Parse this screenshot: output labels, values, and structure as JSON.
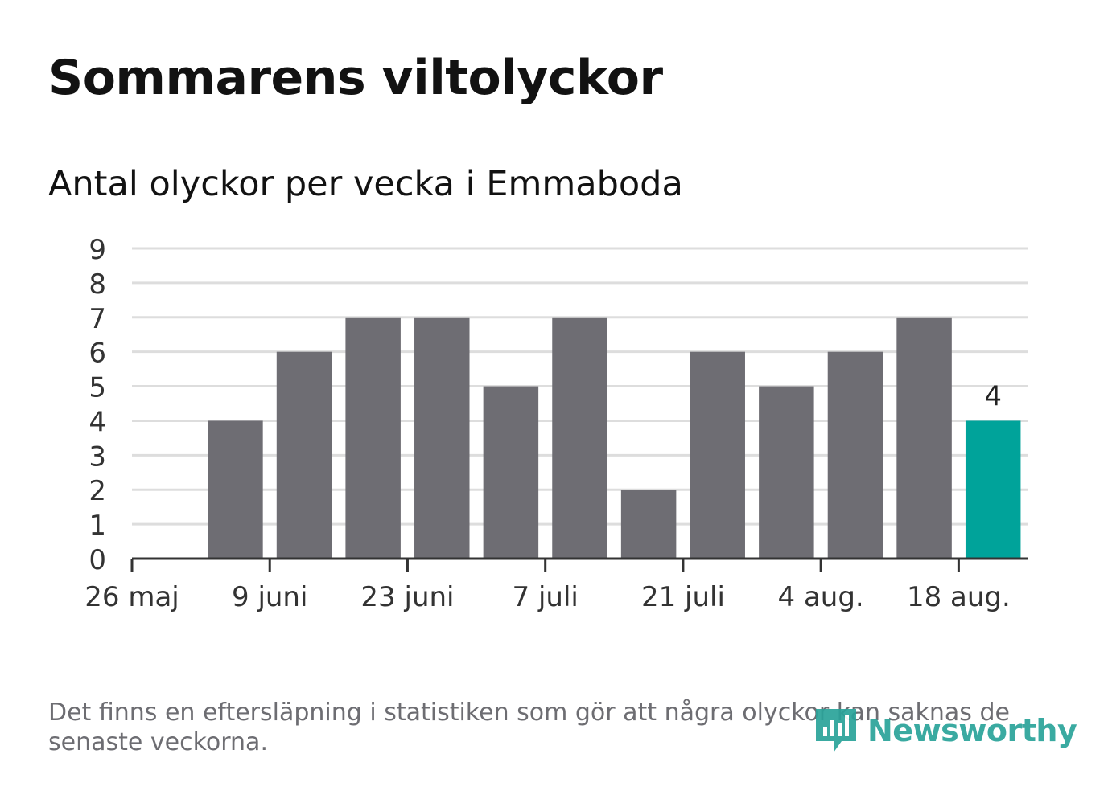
{
  "title": "Sommarens viltolyckor",
  "subtitle": "Antal olyckor per vecka i Emmaboda",
  "footnote": "Det finns en eftersläpning i statistiken som gör att några olyckor kan saknas de senaste veckorna.",
  "brand": {
    "name": "Newsworthy",
    "icon": "newsworthy-logo-icon",
    "color": "#2aa39a"
  },
  "colors": {
    "bar": "#6e6d73",
    "highlight": "#00a39a",
    "grid": "#dddddd",
    "axis": "#333333",
    "text": "#333333"
  },
  "chart_data": {
    "type": "bar",
    "x": [
      "2025-05-26",
      "2025-06-02",
      "2025-06-09",
      "2025-06-16",
      "2025-06-23",
      "2025-06-30",
      "2025-07-07",
      "2025-07-14",
      "2025-07-21",
      "2025-07-28",
      "2025-08-04",
      "2025-08-11",
      "2025-08-18"
    ],
    "values": [
      null,
      4,
      6,
      7,
      7,
      5,
      7,
      2,
      6,
      5,
      6,
      7,
      4
    ],
    "highlight_index": 12,
    "highlight_label": "4",
    "x_ticks": [
      "26 maj",
      "9 juni",
      "23 juni",
      "7 juli",
      "21 juli",
      "4 aug.",
      "18 aug."
    ],
    "x_tick_every": 2,
    "y_ticks": [
      0,
      1,
      2,
      3,
      4,
      5,
      6,
      7,
      8,
      9
    ],
    "ylim": [
      0,
      9
    ],
    "grid": true,
    "xlabel": "",
    "ylabel": ""
  }
}
